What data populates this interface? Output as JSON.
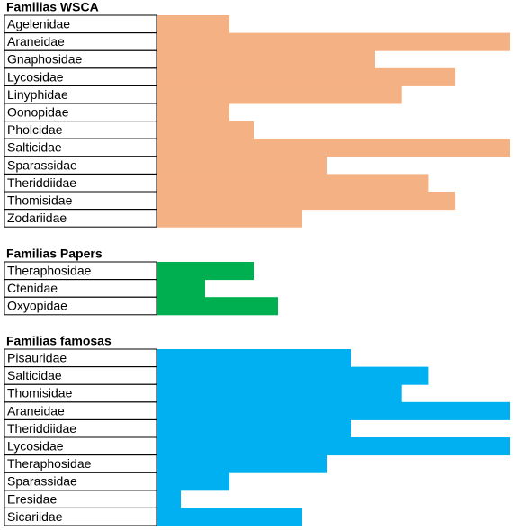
{
  "chart_data": [
    {
      "type": "bar",
      "title": "Familias WSCA",
      "color": "#f4b183",
      "categories": [
        "Agelenidae",
        "Araneidae",
        "Gnaphosidae",
        "Lycosidae",
        "Linyphidae",
        "Oonopidae",
        "Pholcidae",
        "Salticidae",
        "Sparassidae",
        "Theriddiidae",
        "Thomisidae",
        "Zodariidae"
      ],
      "values": [
        3,
        15,
        9,
        12.3,
        10.1,
        3,
        4,
        15,
        7,
        11.2,
        12.3,
        6
      ]
    },
    {
      "type": "bar",
      "title": "Familias Papers",
      "color": "#00b050",
      "categories": [
        "Theraphosidae",
        "Ctenidae",
        "Oxyopidae"
      ],
      "values": [
        4,
        2,
        5
      ]
    },
    {
      "type": "bar",
      "title": "Familias famosas",
      "color": "#00b0f0",
      "categories": [
        "Pisauridae",
        "Salticidae",
        "Thomisidae",
        "Araneidae",
        "Theriddiidae",
        "Lycosidae",
        "Theraphosidae",
        "Sparassidae",
        "Eresidae",
        "Sicariidae"
      ],
      "values": [
        8,
        11.2,
        10.1,
        15,
        8,
        15,
        7,
        3,
        1,
        6
      ]
    }
  ]
}
